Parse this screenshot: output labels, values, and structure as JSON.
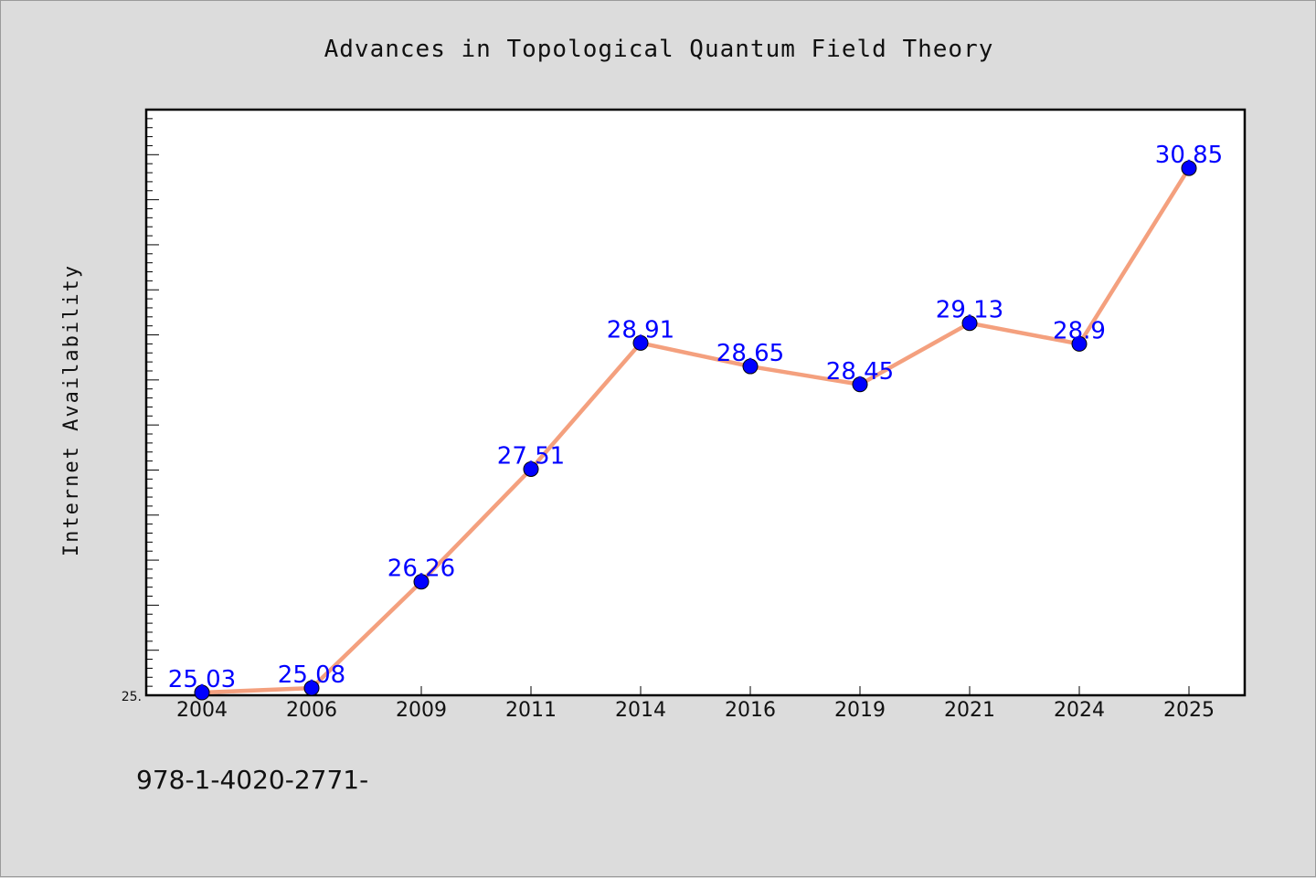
{
  "footnote": "978-1-4020-2771-",
  "colors": {
    "background": "#dcdcdc",
    "plot_background": "#ffffff",
    "line": "#f4a07e",
    "marker": "#0000ff",
    "data_label": "#0000ff"
  },
  "chart_data": {
    "type": "line",
    "title": "Advances in Topological Quantum Field Theory",
    "xlabel": "",
    "ylabel": "Internet Availability",
    "categories": [
      "2004",
      "2006",
      "2009",
      "2011",
      "2014",
      "2016",
      "2019",
      "2021",
      "2024",
      "2025"
    ],
    "series": [
      {
        "values": [
          25.03,
          25.08,
          26.26,
          27.51,
          28.91,
          28.65,
          28.45,
          29.13,
          28.9,
          30.85
        ],
        "labels": [
          "25.03",
          "25.08",
          "26.26",
          "27.51",
          "28.91",
          "28.65",
          "28.45",
          "29.13",
          "28.9",
          "30.85"
        ]
      }
    ],
    "y_tick_labels": [
      "25."
    ],
    "ylim": [
      25.0,
      31.5
    ],
    "grid": false,
    "legend": "none"
  }
}
